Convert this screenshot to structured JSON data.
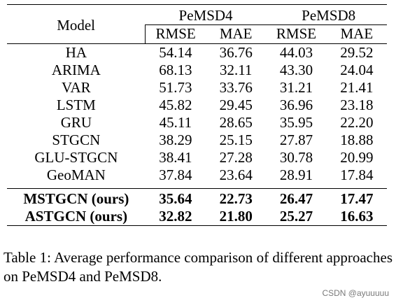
{
  "table": {
    "model_header": "Model",
    "groups": [
      {
        "name": "PeMSD4",
        "metrics": [
          "RMSE",
          "MAE"
        ]
      },
      {
        "name": "PeMSD8",
        "metrics": [
          "RMSE",
          "MAE"
        ]
      }
    ],
    "baselines": [
      {
        "model": "HA",
        "values": [
          "54.14",
          "36.76",
          "44.03",
          "29.52"
        ]
      },
      {
        "model": "ARIMA",
        "values": [
          "68.13",
          "32.11",
          "43.30",
          "24.04"
        ]
      },
      {
        "model": "VAR",
        "values": [
          "51.73",
          "33.76",
          "31.21",
          "21.41"
        ]
      },
      {
        "model": "LSTM",
        "values": [
          "45.82",
          "29.45",
          "36.96",
          "23.18"
        ]
      },
      {
        "model": "GRU",
        "values": [
          "45.11",
          "28.65",
          "35.95",
          "22.20"
        ]
      },
      {
        "model": "STGCN",
        "values": [
          "38.29",
          "25.15",
          "27.87",
          "18.88"
        ]
      },
      {
        "model": "GLU-STGCN",
        "values": [
          "38.41",
          "27.28",
          "30.78",
          "20.99"
        ]
      },
      {
        "model": "GeoMAN",
        "values": [
          "37.84",
          "23.64",
          "28.91",
          "17.84"
        ]
      }
    ],
    "ours": [
      {
        "model": "MSTGCN (ours)",
        "values": [
          "35.64",
          "22.73",
          "26.47",
          "17.47"
        ]
      },
      {
        "model": "ASTGCN (ours)",
        "values": [
          "32.82",
          "21.80",
          "25.27",
          "16.63"
        ]
      }
    ]
  },
  "caption": "Table 1: Average performance comparison of different approaches on PeMSD4 and PeMSD8.",
  "watermark": "CSDN @ayuuuuu"
}
